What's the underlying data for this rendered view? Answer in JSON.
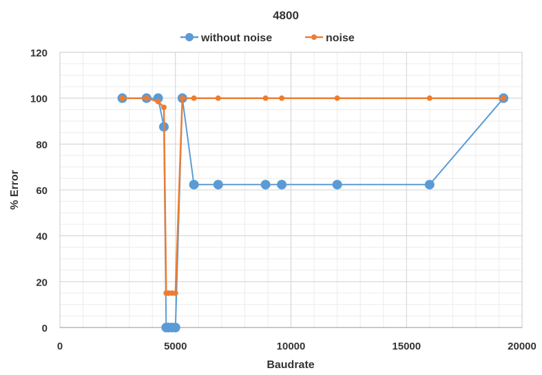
{
  "chart_data": {
    "type": "line",
    "title": "4800",
    "xlabel": "Baudrate",
    "ylabel": "% Error",
    "xlim": [
      0,
      20000
    ],
    "ylim": [
      0,
      120
    ],
    "x_ticks": [
      0,
      5000,
      10000,
      15000,
      20000
    ],
    "y_ticks": [
      0,
      20,
      40,
      60,
      80,
      100,
      120
    ],
    "grid": true,
    "legend_position": "top",
    "series": [
      {
        "name": "without noise",
        "color": "#5B9BD5",
        "marker": "circle-large",
        "x": [
          2700,
          3750,
          4250,
          4500,
          4600,
          4700,
          4850,
          5000,
          5300,
          5800,
          6850,
          8900,
          9600,
          12000,
          16000,
          19200
        ],
        "y": [
          100,
          100,
          100,
          87.5,
          0,
          0,
          0,
          0,
          100,
          62.3,
          62.3,
          62.3,
          62.3,
          62.3,
          62.3,
          100
        ]
      },
      {
        "name": "noise",
        "color": "#ED7D31",
        "marker": "circle-small",
        "x": [
          2700,
          3750,
          4250,
          4500,
          4600,
          4700,
          4850,
          5000,
          5300,
          5800,
          6850,
          8900,
          9600,
          12000,
          16000,
          19200
        ],
        "y": [
          100,
          100,
          98.5,
          96,
          15,
          15,
          15,
          15,
          100,
          100,
          100,
          100,
          100,
          100,
          100,
          100
        ]
      }
    ]
  }
}
